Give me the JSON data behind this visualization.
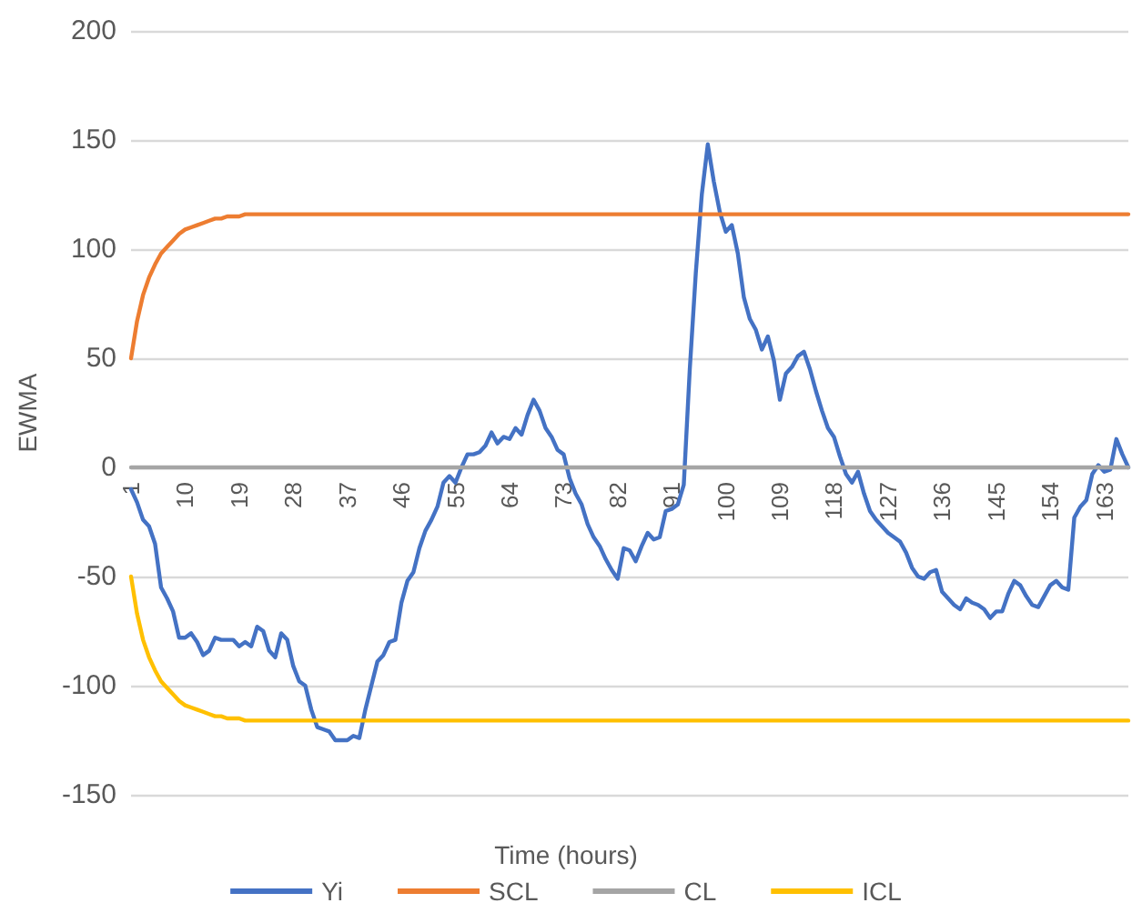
{
  "chart_data": {
    "type": "line",
    "xlabel": "Time (hours)",
    "ylabel": "EWMA",
    "categories": [
      "1",
      null,
      null,
      null,
      null,
      null,
      null,
      null,
      null,
      "10",
      null,
      null,
      null,
      null,
      null,
      null,
      null,
      null,
      "19",
      null,
      null,
      null,
      null,
      null,
      null,
      null,
      null,
      "28",
      null,
      null,
      null,
      null,
      null,
      null,
      null,
      null,
      "37",
      null,
      null,
      null,
      null,
      null,
      null,
      null,
      null,
      "46",
      null,
      null,
      null,
      null,
      null,
      null,
      null,
      null,
      "55",
      null,
      null,
      null,
      null,
      null,
      null,
      null,
      null,
      "64",
      null,
      null,
      null,
      null,
      null,
      null,
      null,
      null,
      "73",
      null,
      null,
      null,
      null,
      null,
      null,
      null,
      null,
      "82",
      null,
      null,
      null,
      null,
      null,
      null,
      null,
      null,
      "91",
      null,
      null,
      null,
      null,
      null,
      null,
      null,
      null,
      "100",
      null,
      null,
      null,
      null,
      null,
      null,
      null,
      null,
      "109",
      null,
      null,
      null,
      null,
      null,
      null,
      null,
      null,
      "118",
      null,
      null,
      null,
      null,
      null,
      null,
      null,
      null,
      "127",
      null,
      null,
      null,
      null,
      null,
      null,
      null,
      null,
      "136",
      null,
      null,
      null,
      null,
      null,
      null,
      null,
      null,
      "145",
      null,
      null,
      null,
      null,
      null,
      null,
      null,
      null,
      "154",
      null,
      null,
      null,
      null,
      null,
      null,
      null,
      null,
      "163",
      null,
      null,
      null,
      null
    ],
    "series": [
      {
        "name": "Yi",
        "color": "#4472c4",
        "values": [
          -10,
          -16,
          -24,
          -27,
          -35,
          -55,
          -60,
          -66,
          -78,
          -78,
          -76,
          -80,
          -86,
          -84,
          -78,
          -79,
          -79,
          -79,
          -82,
          -80,
          -82,
          -73,
          -75,
          -84,
          -87,
          -76,
          -79,
          -91,
          -98,
          -100,
          -111,
          -119,
          -120,
          -121,
          -125,
          -125,
          -125,
          -123,
          -124,
          -111,
          -100,
          -89,
          -86,
          -80,
          -79,
          -62,
          -52,
          -48,
          -37,
          -29,
          -24,
          -18,
          -7,
          -4,
          -7,
          0,
          6,
          6,
          7,
          10,
          16,
          11,
          14,
          13,
          18,
          15,
          24,
          31,
          26,
          18,
          14,
          8,
          6,
          -5,
          -12,
          -17,
          -26,
          -32,
          -36,
          -42,
          -47,
          -51,
          -37,
          -38,
          -43,
          -36,
          -30,
          -33,
          -32,
          -20,
          -19,
          -17,
          -8,
          45,
          89,
          125,
          148,
          131,
          117,
          108,
          111,
          98,
          78,
          68,
          63,
          54,
          60,
          49,
          31,
          43,
          46,
          51,
          53,
          45,
          35,
          26,
          18,
          14,
          5,
          -3,
          -7,
          -2,
          -12,
          -20,
          -24,
          -27,
          -30,
          -32,
          -34,
          -39,
          -46,
          -50,
          -51,
          -48,
          -47,
          -57,
          -60,
          -63,
          -65,
          -60,
          -62,
          -63,
          -65,
          -69,
          -66,
          -66,
          -58,
          -52,
          -54,
          -59,
          -63,
          -64,
          -59,
          -54,
          -52,
          -55,
          -56,
          -23,
          -18,
          -15,
          -3,
          1,
          -2,
          -1,
          13,
          6,
          0
        ]
      },
      {
        "name": "SCL",
        "color": "#ed7d31",
        "values": [
          50,
          67,
          79,
          87,
          93,
          98,
          101,
          104,
          107,
          109,
          110,
          111,
          112,
          113,
          114,
          114,
          115,
          115,
          115,
          116,
          116,
          116,
          116,
          116,
          116,
          116,
          116,
          116,
          116,
          116,
          116,
          116,
          116,
          116,
          116,
          116,
          116,
          116,
          116,
          116,
          116,
          116,
          116,
          116,
          116,
          116,
          116,
          116,
          116,
          116,
          116,
          116,
          116,
          116,
          116,
          116,
          116,
          116,
          116,
          116,
          116,
          116,
          116,
          116,
          116,
          116,
          116,
          116,
          116,
          116,
          116,
          116,
          116,
          116,
          116,
          116,
          116,
          116,
          116,
          116,
          116,
          116,
          116,
          116,
          116,
          116,
          116,
          116,
          116,
          116,
          116,
          116,
          116,
          116,
          116,
          116,
          116,
          116,
          116,
          116,
          116,
          116,
          116,
          116,
          116,
          116,
          116,
          116,
          116,
          116,
          116,
          116,
          116,
          116,
          116,
          116,
          116,
          116,
          116,
          116,
          116,
          116,
          116,
          116,
          116,
          116,
          116,
          116,
          116,
          116,
          116,
          116,
          116,
          116,
          116,
          116,
          116,
          116,
          116,
          116,
          116,
          116,
          116,
          116,
          116,
          116,
          116,
          116,
          116,
          116,
          116,
          116,
          116,
          116,
          116,
          116,
          116,
          116,
          116,
          116,
          116,
          116,
          116,
          116,
          116,
          116,
          116
        ]
      },
      {
        "name": "CL",
        "color": "#a5a5a5",
        "values": [
          0,
          0,
          0,
          0,
          0,
          0,
          0,
          0,
          0,
          0,
          0,
          0,
          0,
          0,
          0,
          0,
          0,
          0,
          0,
          0,
          0,
          0,
          0,
          0,
          0,
          0,
          0,
          0,
          0,
          0,
          0,
          0,
          0,
          0,
          0,
          0,
          0,
          0,
          0,
          0,
          0,
          0,
          0,
          0,
          0,
          0,
          0,
          0,
          0,
          0,
          0,
          0,
          0,
          0,
          0,
          0,
          0,
          0,
          0,
          0,
          0,
          0,
          0,
          0,
          0,
          0,
          0,
          0,
          0,
          0,
          0,
          0,
          0,
          0,
          0,
          0,
          0,
          0,
          0,
          0,
          0,
          0,
          0,
          0,
          0,
          0,
          0,
          0,
          0,
          0,
          0,
          0,
          0,
          0,
          0,
          0,
          0,
          0,
          0,
          0,
          0,
          0,
          0,
          0,
          0,
          0,
          0,
          0,
          0,
          0,
          0,
          0,
          0,
          0,
          0,
          0,
          0,
          0,
          0,
          0,
          0,
          0,
          0,
          0,
          0,
          0,
          0,
          0,
          0,
          0,
          0,
          0,
          0,
          0,
          0,
          0,
          0,
          0,
          0,
          0,
          0,
          0,
          0,
          0,
          0,
          0,
          0,
          0,
          0,
          0,
          0,
          0,
          0,
          0,
          0,
          0,
          0,
          0,
          0,
          0,
          0,
          0,
          0,
          0,
          0,
          0,
          0
        ]
      },
      {
        "name": "ICL",
        "color": "#ffc000",
        "values": [
          -50,
          -67,
          -79,
          -87,
          -93,
          -98,
          -101,
          -104,
          -107,
          -109,
          -110,
          -111,
          -112,
          -113,
          -114,
          -114,
          -115,
          -115,
          -115,
          -116,
          -116,
          -116,
          -116,
          -116,
          -116,
          -116,
          -116,
          -116,
          -116,
          -116,
          -116,
          -116,
          -116,
          -116,
          -116,
          -116,
          -116,
          -116,
          -116,
          -116,
          -116,
          -116,
          -116,
          -116,
          -116,
          -116,
          -116,
          -116,
          -116,
          -116,
          -116,
          -116,
          -116,
          -116,
          -116,
          -116,
          -116,
          -116,
          -116,
          -116,
          -116,
          -116,
          -116,
          -116,
          -116,
          -116,
          -116,
          -116,
          -116,
          -116,
          -116,
          -116,
          -116,
          -116,
          -116,
          -116,
          -116,
          -116,
          -116,
          -116,
          -116,
          -116,
          -116,
          -116,
          -116,
          -116,
          -116,
          -116,
          -116,
          -116,
          -116,
          -116,
          -116,
          -116,
          -116,
          -116,
          -116,
          -116,
          -116,
          -116,
          -116,
          -116,
          -116,
          -116,
          -116,
          -116,
          -116,
          -116,
          -116,
          -116,
          -116,
          -116,
          -116,
          -116,
          -116,
          -116,
          -116,
          -116,
          -116,
          -116,
          -116,
          -116,
          -116,
          -116,
          -116,
          -116,
          -116,
          -116,
          -116,
          -116,
          -116,
          -116,
          -116,
          -116,
          -116,
          -116,
          -116,
          -116,
          -116,
          -116,
          -116,
          -116,
          -116,
          -116,
          -116,
          -116,
          -116,
          -116,
          -116,
          -116,
          -116,
          -116,
          -116,
          -116,
          -116,
          -116,
          -116,
          -116,
          -116,
          -116,
          -116,
          -116,
          -116,
          -116,
          -116,
          -116,
          -116
        ]
      }
    ],
    "ylim": [
      -150,
      200
    ],
    "yticks": [
      -150,
      -100,
      -50,
      0,
      50,
      100,
      150,
      200
    ],
    "grid": "y",
    "legend": "bottom",
    "marker": "none",
    "line_style": "solid"
  }
}
